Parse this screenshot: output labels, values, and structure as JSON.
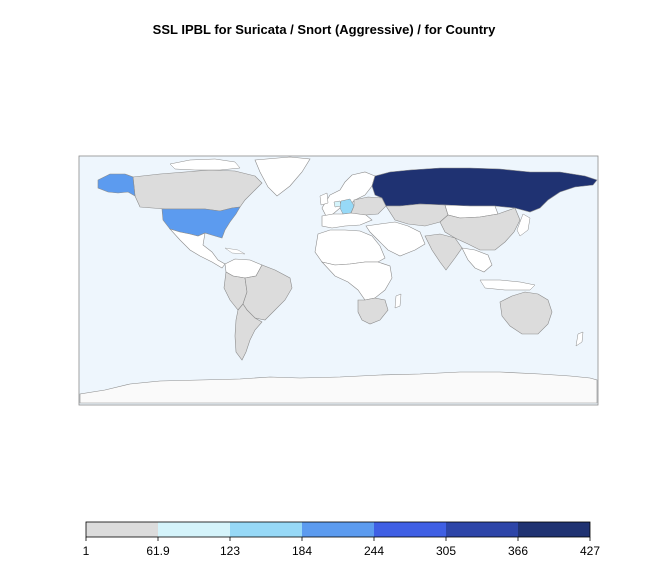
{
  "title": "SSL IPBL for Suricata / Snort (Aggressive) / for Country",
  "map": {
    "ocean_color": "#eef6fd",
    "no_data_color": "#ffffff",
    "border_color": "#8c8c8c",
    "countries": [
      {
        "name": "Russia",
        "bin": 6
      },
      {
        "name": "United States",
        "bin": 3
      },
      {
        "name": "Alaska",
        "bin": 3
      },
      {
        "name": "Germany",
        "bin": 2
      },
      {
        "name": "Netherlands",
        "bin": 1
      },
      {
        "name": "Canada",
        "bin": 0
      },
      {
        "name": "Brazil",
        "bin": 0
      },
      {
        "name": "China",
        "bin": 0
      },
      {
        "name": "Australia",
        "bin": 0
      },
      {
        "name": "South Africa",
        "bin": 0
      },
      {
        "name": "India",
        "bin": 0
      }
    ]
  },
  "legend": {
    "colors": [
      "#dcdcdc",
      "#d5f4fb",
      "#97d9f7",
      "#5c9bef",
      "#3f5fe4",
      "#2d45a8",
      "#1f3272"
    ],
    "ticks": [
      "1",
      "61.9",
      "123",
      "184",
      "244",
      "305",
      "366",
      "427"
    ]
  }
}
